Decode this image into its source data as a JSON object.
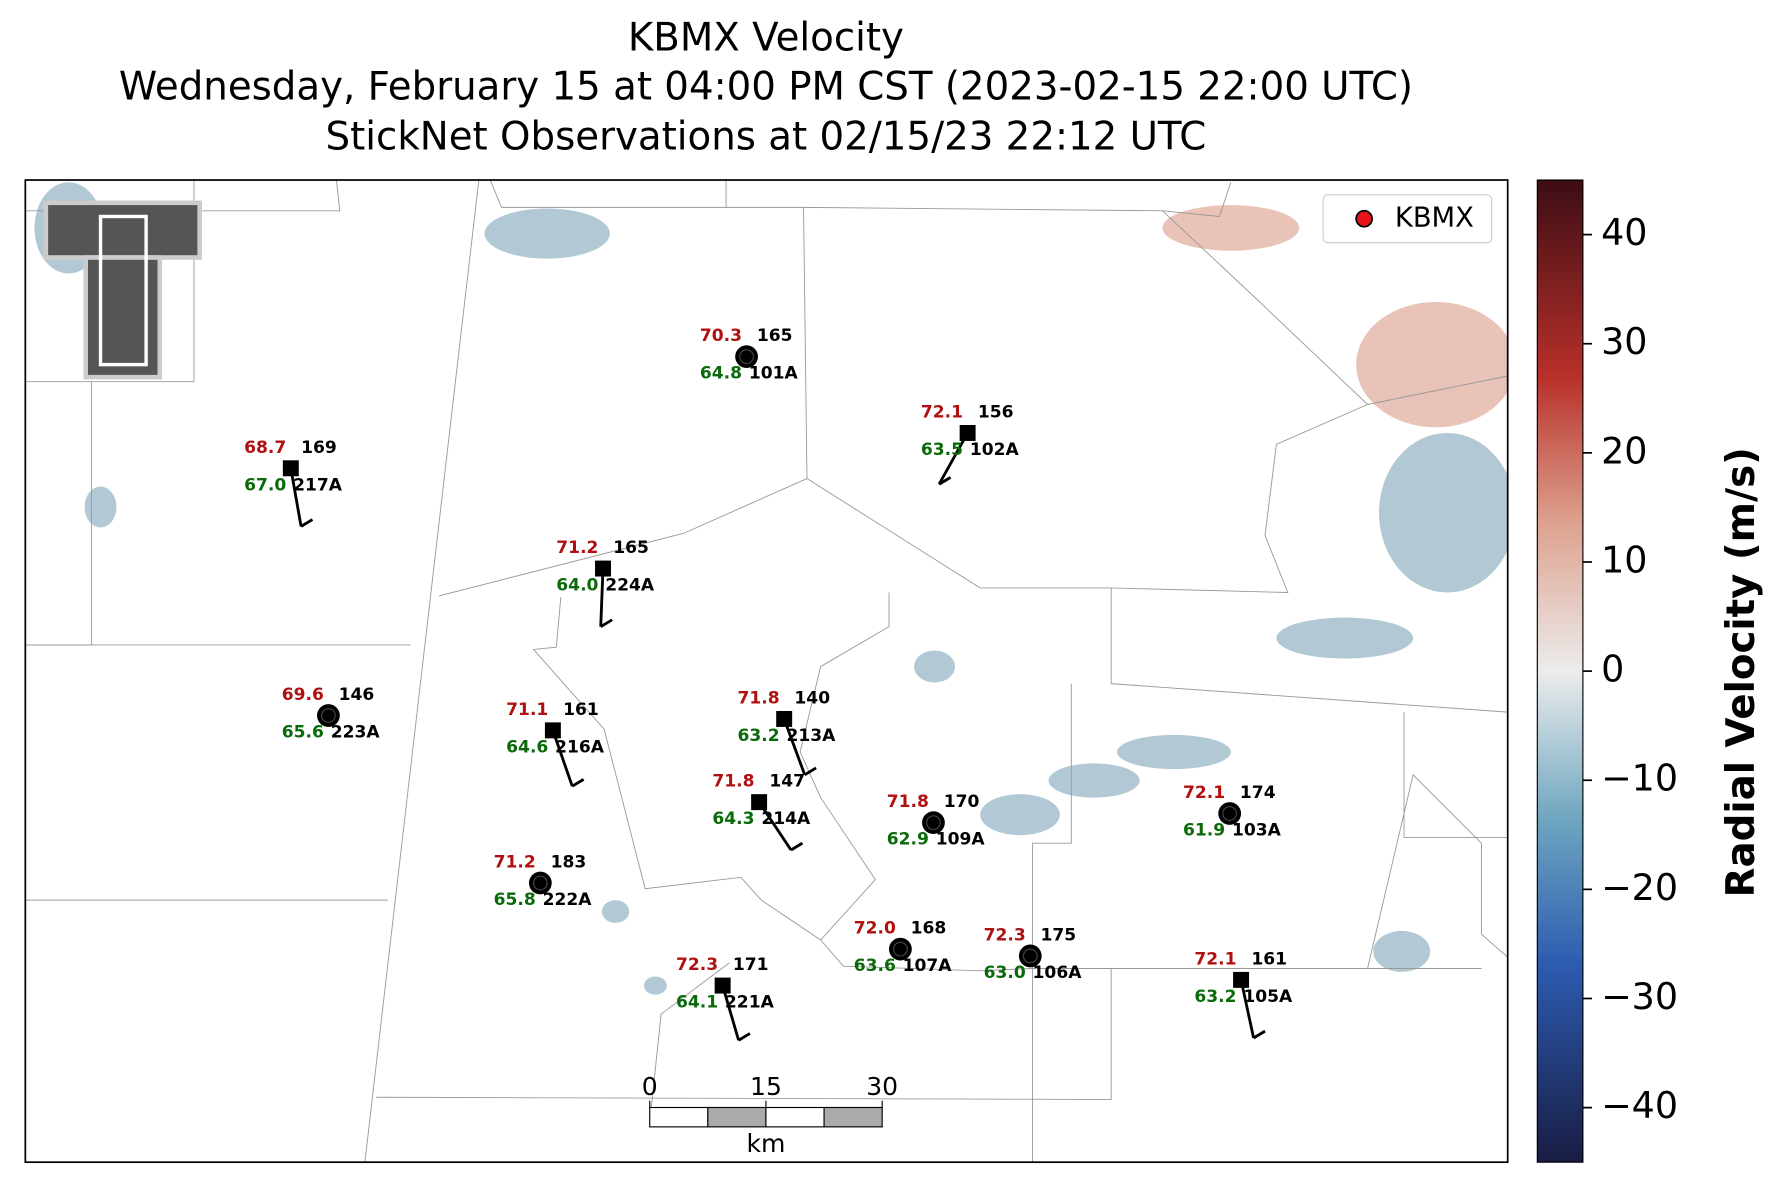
{
  "title": {
    "lines": [
      "KBMX Velocity",
      "Wednesday, February 15 at 04:00 PM CST (2023-02-15 22:00 UTC)",
      "StickNet Observations at 02/15/23 22:12 UTC"
    ]
  },
  "map": {
    "legend": {
      "label": "KBMX",
      "color": "#e8141c"
    },
    "scale_bar": {
      "ticks": [
        0,
        15,
        30
      ],
      "unit": "km"
    },
    "stations": [
      {
        "id": "101A",
        "temperature": "70.3",
        "dewpoint": "64.8",
        "value": "165",
        "marker": "circle"
      },
      {
        "id": "102A",
        "temperature": "72.1",
        "dewpoint": "63.5",
        "value": "156",
        "marker": "square"
      },
      {
        "id": "217A",
        "temperature": "68.7",
        "dewpoint": "67.0",
        "value": "169",
        "marker": "square"
      },
      {
        "id": "224A",
        "temperature": "71.2",
        "dewpoint": "64.0",
        "value": "165",
        "marker": "square"
      },
      {
        "id": "223A",
        "temperature": "69.6",
        "dewpoint": "65.6",
        "value": "146",
        "marker": "circle"
      },
      {
        "id": "216A",
        "temperature": "71.1",
        "dewpoint": "64.6",
        "value": "161",
        "marker": "square"
      },
      {
        "id": "213A",
        "temperature": "71.8",
        "dewpoint": "63.2",
        "value": "140",
        "marker": "square"
      },
      {
        "id": "214A",
        "temperature": "71.8",
        "dewpoint": "64.3",
        "value": "147",
        "marker": "square"
      },
      {
        "id": "109A",
        "temperature": "71.8",
        "dewpoint": "62.9",
        "value": "170",
        "marker": "circle"
      },
      {
        "id": "103A",
        "temperature": "72.1",
        "dewpoint": "61.9",
        "value": "174",
        "marker": "circle"
      },
      {
        "id": "222A",
        "temperature": "71.2",
        "dewpoint": "65.8",
        "value": "183",
        "marker": "circle"
      },
      {
        "id": "107A",
        "temperature": "72.0",
        "dewpoint": "63.6",
        "value": "168",
        "marker": "circle"
      },
      {
        "id": "106A",
        "temperature": "72.3",
        "dewpoint": "63.0",
        "value": "175",
        "marker": "circle"
      },
      {
        "id": "221A",
        "temperature": "72.3",
        "dewpoint": "64.1",
        "value": "171",
        "marker": "square"
      },
      {
        "id": "105A",
        "temperature": "72.1",
        "dewpoint": "63.2",
        "value": "161",
        "marker": "square"
      }
    ]
  },
  "colorbar": {
    "label": "Radial Velocity (m/s)",
    "ylim": [
      -45,
      45
    ],
    "yticks": [
      {
        "value": -40,
        "label": "−40"
      },
      {
        "value": -30,
        "label": "−30"
      },
      {
        "value": -20,
        "label": "−20"
      },
      {
        "value": -10,
        "label": "−10"
      },
      0,
      10,
      20,
      30,
      40
    ]
  }
}
